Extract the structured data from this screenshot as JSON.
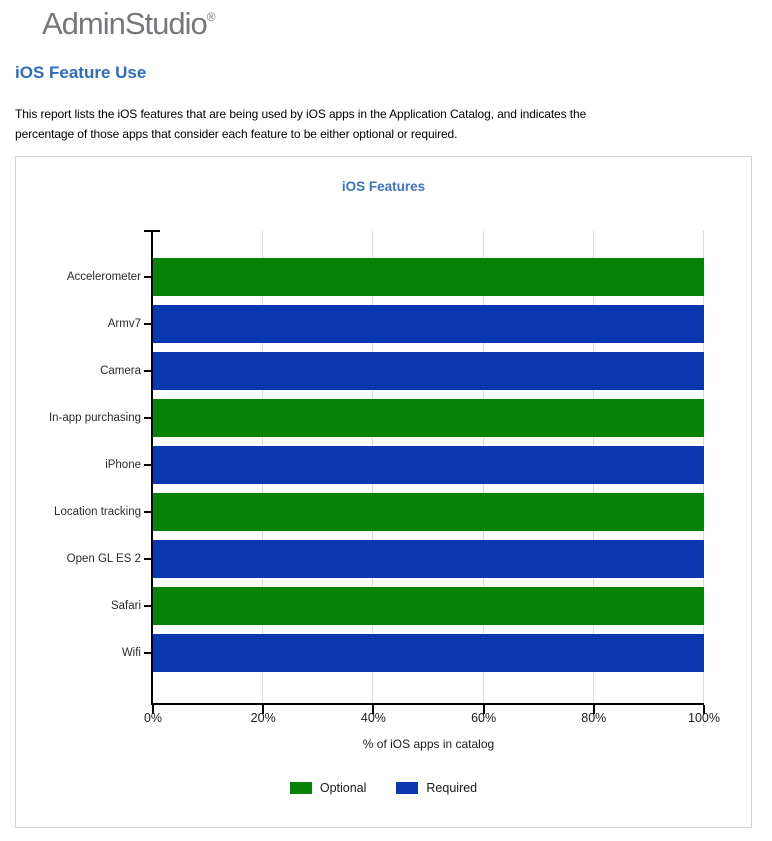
{
  "logo": {
    "text": "AdminStudio",
    "registered_mark": "®"
  },
  "page": {
    "title": "iOS Feature Use",
    "description_lines": [
      "This report lists the iOS features that are being used by iOS apps in the Application Catalog, and indicates the",
      "percentage of those apps  that consider each feature to be either optional or required."
    ]
  },
  "chart_data": {
    "type": "bar",
    "orientation": "horizontal",
    "title": "iOS Features",
    "xlabel": "% of iOS apps in catalog",
    "xlim": [
      0,
      100
    ],
    "x_tick_labels": [
      "0%",
      "20%",
      "40%",
      "60%",
      "80%",
      "100%"
    ],
    "grid": "vertical-at-ticks",
    "legend_position": "bottom",
    "categories": [
      "Accelerometer",
      "Armv7",
      "Camera",
      "In-app purchasing",
      "iPhone",
      "Location tracking",
      "Open GL ES 2",
      "Safari",
      "Wifi"
    ],
    "bars": [
      {
        "category": "Accelerometer",
        "series": "Optional",
        "value": 100
      },
      {
        "category": "Armv7",
        "series": "Required",
        "value": 100
      },
      {
        "category": "Camera",
        "series": "Required",
        "value": 100
      },
      {
        "category": "In-app purchasing",
        "series": "Optional",
        "value": 100
      },
      {
        "category": "iPhone",
        "series": "Required",
        "value": 100
      },
      {
        "category": "Location tracking",
        "series": "Optional",
        "value": 100
      },
      {
        "category": "Open GL ES 2",
        "series": "Required",
        "value": 100
      },
      {
        "category": "Safari",
        "series": "Optional",
        "value": 100
      },
      {
        "category": "Wifi",
        "series": "Required",
        "value": 100
      }
    ],
    "series": [
      {
        "name": "Optional",
        "color": "#068306"
      },
      {
        "name": "Required",
        "color": "#0a36b0"
      }
    ]
  },
  "colors": {
    "page_title": "#2d6cbe",
    "chart_title": "#3c72c3",
    "logo_gray": "#77787b",
    "gridline": "#dbdbdb",
    "panel_border": "#d5d5d5"
  }
}
